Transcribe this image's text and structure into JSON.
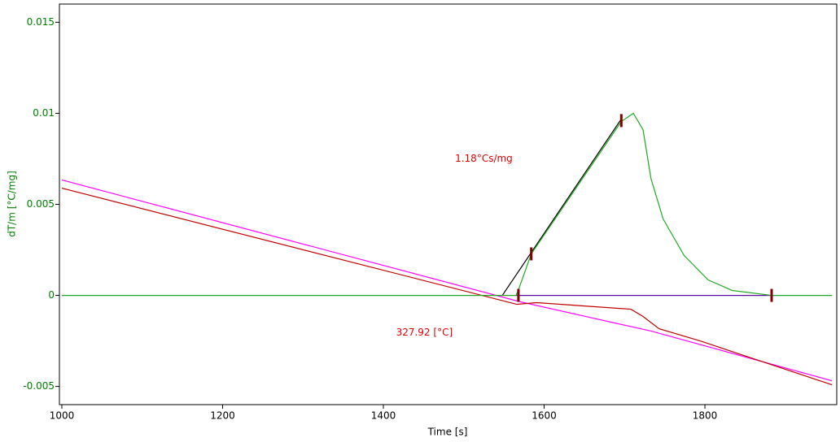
{
  "chart_data": {
    "type": "line",
    "xlabel": "Time [s]",
    "ylabel": "dT/m  [°C/mg]",
    "xlim": [
      997,
      1964
    ],
    "ylim": [
      -0.006,
      0.016
    ],
    "xticks": [
      1000,
      1200,
      1400,
      1600,
      1800
    ],
    "yticks": [
      0.015,
      0.01,
      0.005,
      0,
      -0.005
    ],
    "axis_color": "#008000",
    "series": [
      {
        "color": "#ff00ff",
        "x": [
          1000,
          1571,
          1733,
          1958
        ],
        "values": [
          0.00634,
          -0.00036,
          -0.00196,
          -0.00469
        ]
      },
      {
        "color": "#c00000",
        "x": [
          1000,
          1566,
          1591,
          1708,
          1723,
          1743,
          1794,
          1958
        ],
        "values": [
          0.00589,
          -0.00049,
          -0.0004,
          -0.00076,
          -0.00116,
          -0.00183,
          -0.0025,
          -0.00491
        ]
      },
      {
        "color": "#003050",
        "x": [
          1000,
          1958
        ],
        "values": [
          0,
          0
        ]
      },
      {
        "color": "#6000a0",
        "x": [
          1568,
          1883
        ],
        "values": [
          0,
          0
        ]
      },
      {
        "color": "#000000",
        "x": [
          1548,
          1696
        ],
        "values": [
          0,
          0.00969
        ]
      },
      {
        "color": "#22aa22",
        "x": [
          1000,
          1565,
          1568,
          1584,
          1696,
          1711,
          1723,
          1733,
          1748,
          1774,
          1804,
          1834,
          1883,
          1958
        ],
        "values": [
          0,
          0,
          0.0003,
          0.00228,
          0.00955,
          0.01,
          0.0091,
          0.0064,
          0.0042,
          0.0022,
          0.00085,
          0.00027,
          0,
          0
        ]
      }
    ],
    "markers": {
      "color": "#800000",
      "x": [
        1568,
        1584,
        1696,
        1883
      ],
      "values": [
        0,
        0.00228,
        0.0096,
        0
      ]
    },
    "annotations": [
      {
        "text": "1.18°Cs/mg",
        "x": 1525,
        "y": 0.0075
      },
      {
        "text": "327.92 [°C]",
        "x": 1451,
        "y": -0.00205
      }
    ],
    "annotation_color": "#e00000"
  }
}
